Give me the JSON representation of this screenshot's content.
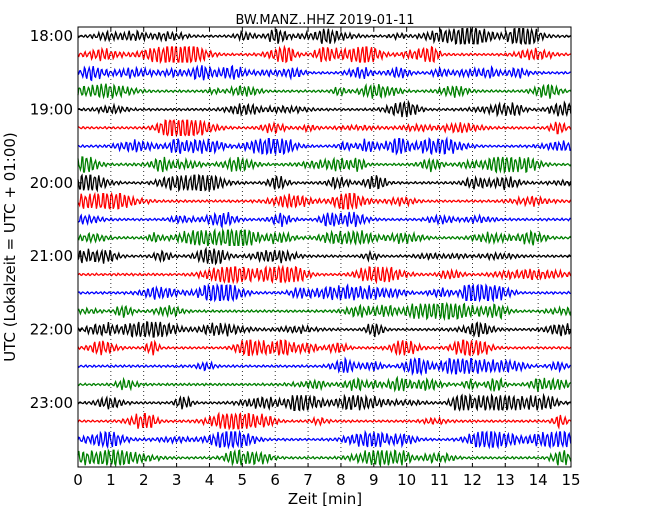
{
  "chart_data": {
    "type": "line",
    "title": "BW.MANZ..HHZ 2019-01-11",
    "xlabel": "Zeit  [min]",
    "ylabel": "UTC (Lokalzeit = UTC + 01:00)",
    "xlim": [
      0,
      15
    ],
    "x_ticks": [
      "0",
      "1",
      "2",
      "3",
      "4",
      "5",
      "6",
      "7",
      "8",
      "9",
      "10",
      "11",
      "12",
      "13",
      "14",
      "15"
    ],
    "y_ticks": [
      "18:00",
      "19:00",
      "20:00",
      "21:00",
      "22:00",
      "23:00"
    ],
    "grid": "vertical dotted at each minute",
    "trace_colors": [
      "#000000",
      "#ff0000",
      "#0000ff",
      "#008000"
    ],
    "trace_minutes": 15,
    "trace_count": 24,
    "trace_start_times": [
      "18:00",
      "18:15",
      "18:30",
      "18:45",
      "19:00",
      "19:15",
      "19:30",
      "19:45",
      "20:00",
      "20:15",
      "20:30",
      "20:45",
      "21:00",
      "21:15",
      "21:30",
      "21:45",
      "22:00",
      "22:15",
      "22:30",
      "22:45",
      "23:00",
      "23:15",
      "23:30",
      "23:45"
    ]
  }
}
